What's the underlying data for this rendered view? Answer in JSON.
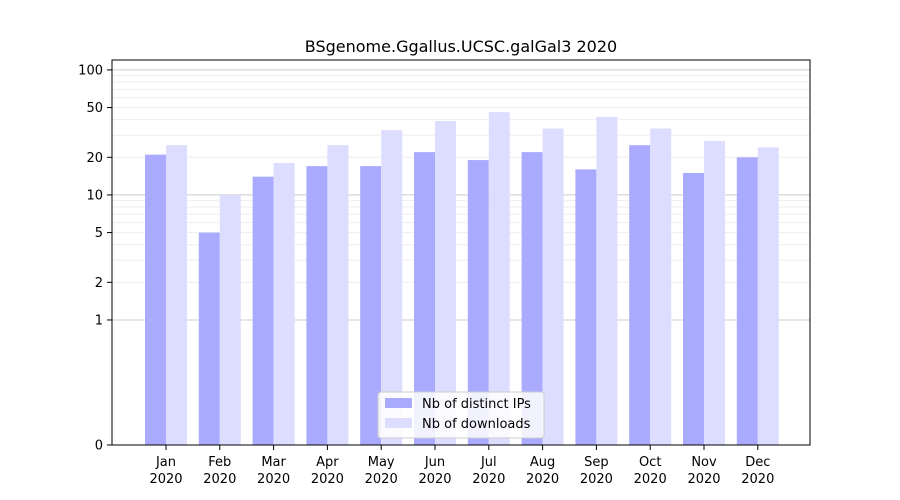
{
  "chart_data": {
    "type": "bar",
    "title": "BSgenome.Ggallus.UCSC.galGal3 2020",
    "xlabel": "",
    "ylabel": "",
    "y_scale": "symlog",
    "ylim": [
      0,
      120
    ],
    "yticks": [
      0,
      1,
      2,
      5,
      10,
      20,
      50,
      100
    ],
    "grid": true,
    "legend_position": "bottom-center",
    "categories": [
      [
        "Jan",
        "2020"
      ],
      [
        "Feb",
        "2020"
      ],
      [
        "Mar",
        "2020"
      ],
      [
        "Apr",
        "2020"
      ],
      [
        "May",
        "2020"
      ],
      [
        "Jun",
        "2020"
      ],
      [
        "Jul",
        "2020"
      ],
      [
        "Aug",
        "2020"
      ],
      [
        "Sep",
        "2020"
      ],
      [
        "Oct",
        "2020"
      ],
      [
        "Nov",
        "2020"
      ],
      [
        "Dec",
        "2020"
      ]
    ],
    "series": [
      {
        "name": "Nb of distinct IPs",
        "color": "#aaaaff",
        "values": [
          21,
          5,
          14,
          17,
          17,
          22,
          19,
          22,
          16,
          25,
          15,
          20
        ]
      },
      {
        "name": "Nb of downloads",
        "color": "#ddddff",
        "values": [
          25,
          10,
          18,
          25,
          33,
          39,
          46,
          34,
          42,
          34,
          27,
          24
        ]
      }
    ]
  }
}
